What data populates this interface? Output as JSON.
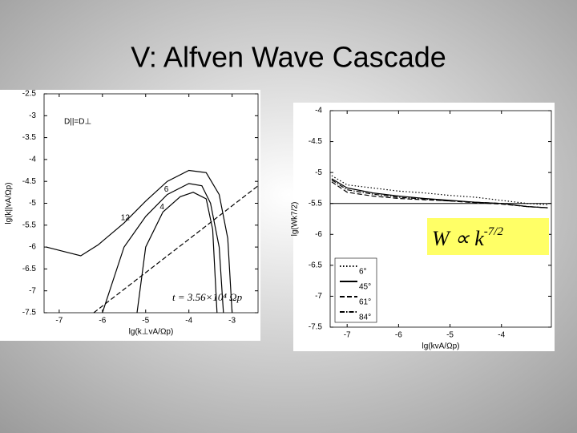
{
  "slide_title": "V: Alfven Wave Cascade",
  "chart_data": [
    {
      "type": "contour",
      "xlabel": "lg(k⊥vA/Ωp)",
      "ylabel": "lg(k||vA/Ωp)",
      "xlim": [
        -7.35,
        -2.4
      ],
      "ylim": [
        -7.5,
        -2.5
      ],
      "xticks": [
        -7,
        -6,
        -5,
        -4,
        -3
      ],
      "yticks": [
        -2.5,
        -3,
        -3.5,
        -4,
        -4.5,
        -5,
        -5.5,
        -6,
        -6.5,
        -7,
        -7.5
      ],
      "annotations": [
        "D||=D⊥",
        "t = 3.56×10⁴ Ωp"
      ],
      "series": [
        {
          "name": "12",
          "color": "#000000",
          "style": "solid",
          "x": [
            -7.3,
            -6.9,
            -6.5,
            -6.1,
            -5.5,
            -5.0,
            -4.5,
            -4.0,
            -3.6,
            -3.3,
            -3.1,
            -3.0
          ],
          "values": [
            -6.0,
            -6.1,
            -6.2,
            -5.95,
            -5.45,
            -4.95,
            -4.5,
            -4.25,
            -4.3,
            -4.8,
            -5.8,
            -7.5
          ]
        },
        {
          "name": "6",
          "color": "#000000",
          "style": "solid",
          "x": [
            -6.0,
            -5.5,
            -5.0,
            -4.5,
            -4.0,
            -3.7,
            -3.5,
            -3.3,
            -3.2
          ],
          "values": [
            -7.5,
            -6.0,
            -5.3,
            -4.8,
            -4.55,
            -4.6,
            -5.0,
            -6.0,
            -7.5
          ]
        },
        {
          "name": "4",
          "color": "#000000",
          "style": "solid",
          "x": [
            -5.2,
            -5.0,
            -4.6,
            -4.2,
            -3.9,
            -3.6,
            -3.45,
            -3.35
          ],
          "values": [
            -7.5,
            -6.0,
            -5.2,
            -4.85,
            -4.75,
            -4.9,
            -5.6,
            -7.5
          ]
        }
      ],
      "dashed_line": {
        "color": "#000000",
        "x": [
          -6.2,
          -2.4
        ],
        "values": [
          -7.5,
          -4.6
        ]
      }
    },
    {
      "type": "line",
      "xlabel": "lg(kvA/Ωp)",
      "ylabel": "lg(Wk7/2)",
      "xlim": [
        -7.33,
        -3.03
      ],
      "ylim": [
        -7.5,
        -4
      ],
      "xticks": [
        -7,
        -6,
        -5,
        -4
      ],
      "yticks": [
        -4,
        -4.5,
        -5,
        -5.5,
        -6,
        -6.5,
        -7,
        -7.5
      ],
      "annotation": {
        "text": "W ∝ k",
        "exponent": "-7/2"
      },
      "hline": -5.5,
      "x": [
        -7.3,
        -7,
        -6.5,
        -6,
        -5.5,
        -5,
        -4.5,
        -4,
        -3.5,
        -3.1
      ],
      "series": [
        {
          "name": "6°",
          "color": "#000000",
          "style": "dotted",
          "values": [
            -5.05,
            -5.2,
            -5.25,
            -5.3,
            -5.33,
            -5.37,
            -5.4,
            -5.45,
            -5.5,
            -5.52
          ]
        },
        {
          "name": "45°",
          "color": "#000000",
          "style": "solid",
          "values": [
            -5.1,
            -5.25,
            -5.33,
            -5.38,
            -5.42,
            -5.45,
            -5.48,
            -5.5,
            -5.55,
            -5.57
          ]
        },
        {
          "name": "61°",
          "color": "#000000",
          "style": "dashed",
          "values": [
            -5.15,
            -5.32,
            -5.38,
            -5.42,
            -5.44,
            -5.46,
            -5.49,
            -5.51,
            -5.55,
            -5.57
          ]
        },
        {
          "name": "84°",
          "color": "#000000",
          "style": "dashdot",
          "values": [
            -5.12,
            -5.28,
            -5.35,
            -5.4,
            -5.43,
            -5.46,
            -5.48,
            -5.5,
            -5.55,
            -5.57
          ]
        }
      ]
    }
  ]
}
